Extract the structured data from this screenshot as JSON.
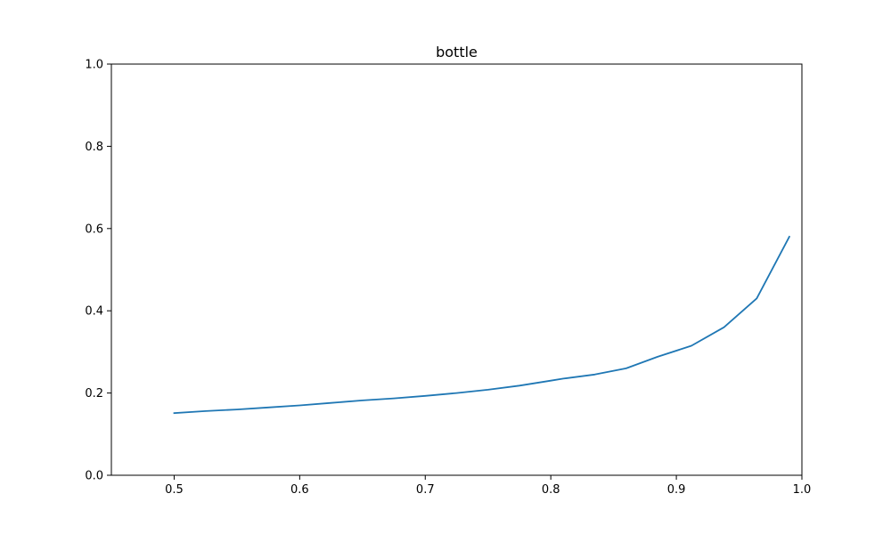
{
  "chart_data": {
    "type": "line",
    "title": "bottle",
    "xlabel": "",
    "ylabel": "",
    "xlim": [
      0.45,
      1.0
    ],
    "ylim": [
      0.0,
      1.0
    ],
    "xticks": [
      "0.5",
      "0.6",
      "0.7",
      "0.8",
      "0.9",
      "1.0"
    ],
    "yticks": [
      "0.0",
      "0.2",
      "0.4",
      "0.6",
      "0.8",
      "1.0"
    ],
    "grid": false,
    "series": [
      {
        "color": "#1f77b4",
        "x": [
          0.5,
          0.525,
          0.55,
          0.575,
          0.6,
          0.625,
          0.65,
          0.675,
          0.7,
          0.725,
          0.75,
          0.775,
          0.8,
          0.81,
          0.835,
          0.86,
          0.885,
          0.912,
          0.938,
          0.964,
          0.99
        ],
        "y": [
          0.151,
          0.156,
          0.16,
          0.165,
          0.17,
          0.176,
          0.182,
          0.187,
          0.193,
          0.2,
          0.208,
          0.218,
          0.23,
          0.235,
          0.245,
          0.26,
          0.288,
          0.315,
          0.36,
          0.43,
          0.58
        ]
      }
    ]
  }
}
